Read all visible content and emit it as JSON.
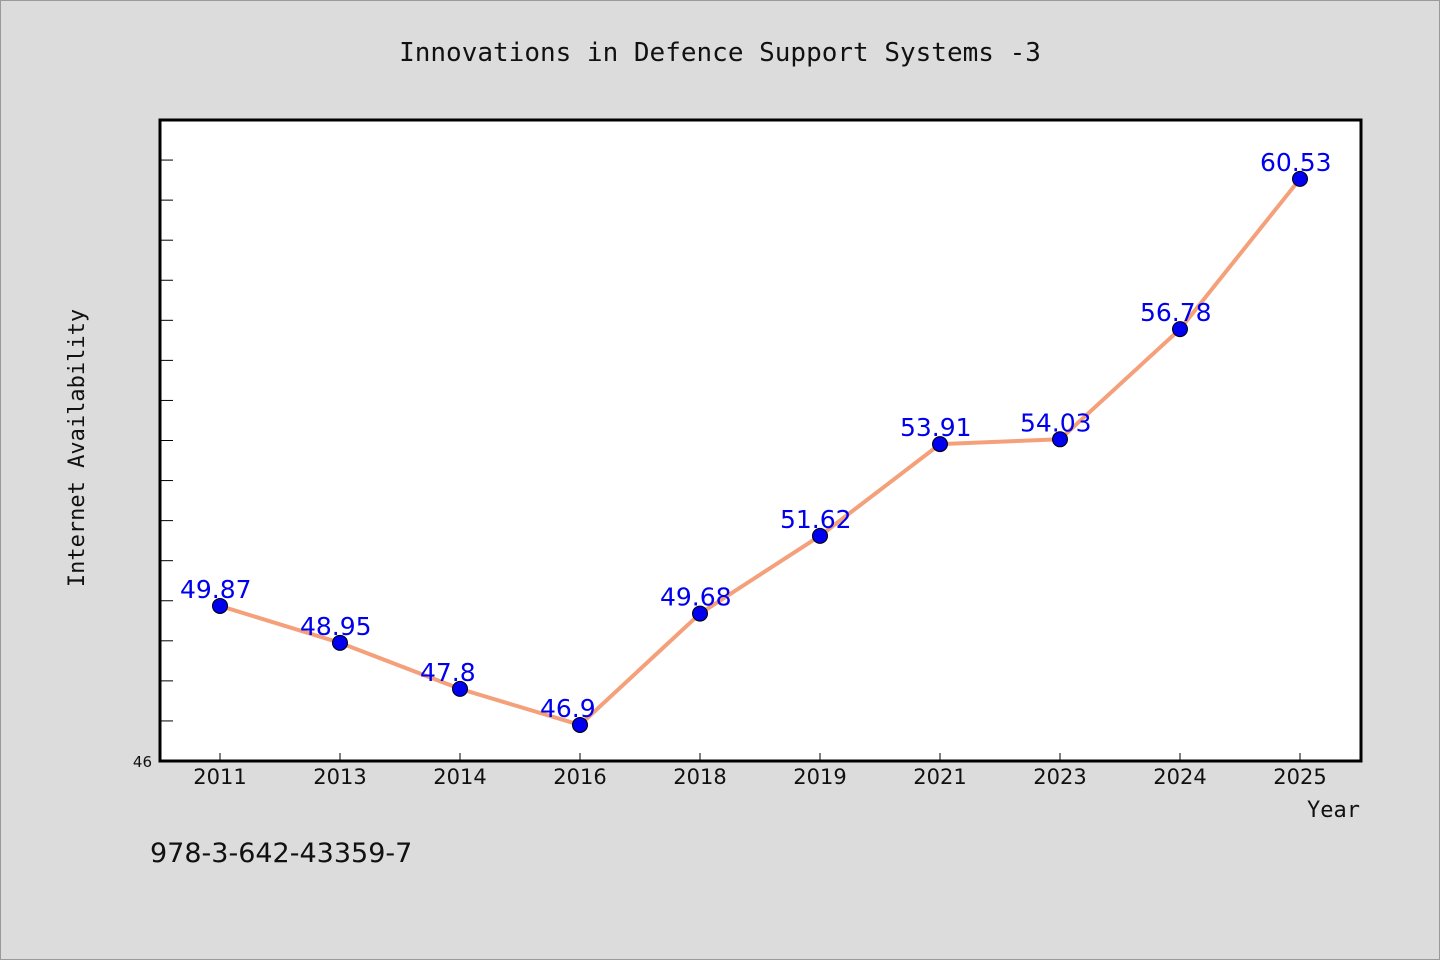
{
  "chart_data": {
    "type": "line",
    "title": "Innovations in Defence Support Systems -3",
    "xlabel": "Year",
    "ylabel": "Internet Availability",
    "categories": [
      "2011",
      "2013",
      "2014",
      "2016",
      "2018",
      "2019",
      "2021",
      "2023",
      "2024",
      "2025"
    ],
    "series": [
      {
        "values": [
          49.87,
          48.95,
          47.8,
          46.9,
          49.68,
          51.62,
          53.91,
          54.03,
          56.78,
          60.53
        ],
        "color": "#f4a07a"
      }
    ],
    "data_labels": [
      "49.87",
      "48.95",
      "47.8",
      "46.9",
      "49.68",
      "51.62",
      "53.91",
      "54.03",
      "56.78",
      "60.53"
    ],
    "ylim": [
      46,
      62
    ],
    "y_min_label": "46",
    "grid": false,
    "marker_color": "#0000ee",
    "label_color": "#0000ee",
    "background": "#dcdcdc",
    "plot_background": "#ffffff"
  },
  "footer": {
    "isbn": "978-3-642-43359-7"
  }
}
